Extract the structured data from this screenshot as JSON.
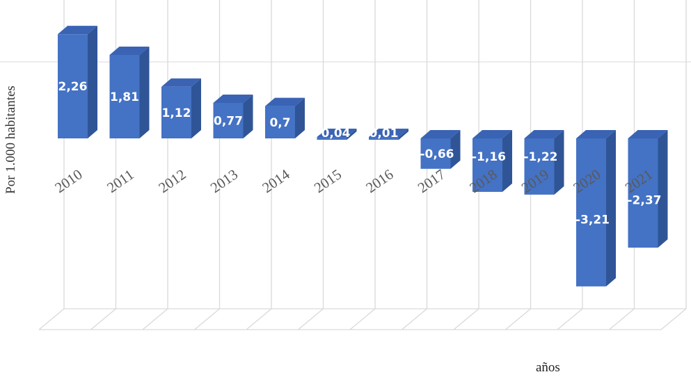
{
  "chart_data": {
    "type": "bar",
    "style": "3d-column",
    "categories": [
      "2010",
      "2011",
      "2012",
      "2013",
      "2014",
      "2015",
      "2016",
      "2017",
      "2018",
      "2019",
      "2020",
      "2021"
    ],
    "values": [
      2.26,
      1.81,
      1.12,
      0.77,
      0.7,
      -0.04,
      0.01,
      -0.66,
      -1.16,
      -1.22,
      -3.21,
      -2.37
    ],
    "data_labels": [
      "2,26",
      "1,81",
      "1,12",
      "0,77",
      "0,7",
      "-0,04",
      "0,01",
      "-0,66",
      "-1,16",
      "-1,22",
      "-3,21",
      "-2,37"
    ],
    "ylabel": "Por 1.000 habitantes",
    "xlabel": "años",
    "ylim": [
      -4,
      3
    ],
    "grid": true,
    "legend": "none",
    "colors": {
      "bar_front": "#4472C4",
      "bar_side": "#2F5597",
      "bar_top": "#3A63B4",
      "grid": "#D9D9D9",
      "tick_text": "#595959"
    }
  }
}
